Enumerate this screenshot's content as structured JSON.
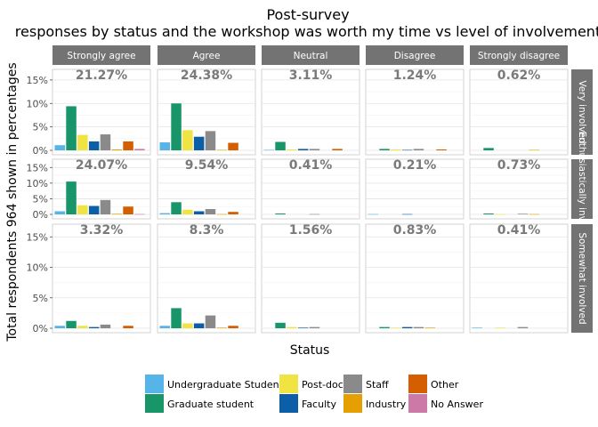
{
  "title_line1": "Post-survey",
  "title_line2": "responses by status and the workshop was worth my time vs level of involvement",
  "chart_data": {
    "type": "bar",
    "facet_cols": [
      "Strongly agree",
      "Agree",
      "Neutral",
      "Disagree",
      "Strongly disagree"
    ],
    "facet_rows": [
      "Very involved",
      "Enthusiastically involved",
      "Somewhat involved"
    ],
    "ylabel": "Total respondents 964 shown in percentages",
    "xlabel": "Status",
    "ylim": [
      0,
      16.5
    ],
    "y_ticks": [
      "0%",
      "5%",
      "10%",
      "15%"
    ],
    "y_tick_values": [
      0,
      5,
      10,
      15
    ],
    "grid": true,
    "legend_position": "bottom",
    "series": [
      {
        "name": "Undergraduate Student",
        "color": "#56B4E9"
      },
      {
        "name": "Graduate student",
        "color": "#199669"
      },
      {
        "name": "Post-doc",
        "color": "#F0E442"
      },
      {
        "name": "Faculty",
        "color": "#0C5FA6"
      },
      {
        "name": "Staff",
        "color": "#8A8A8A"
      },
      {
        "name": "Industry",
        "color": "#E69F00"
      },
      {
        "name": "Other",
        "color": "#D55E00"
      },
      {
        "name": "No Answer",
        "color": "#CC79A7"
      }
    ],
    "panels": [
      {
        "row": 0,
        "col": 0,
        "label": "21.27%",
        "values": [
          1.1,
          9.4,
          3.3,
          1.9,
          3.4,
          0.2,
          1.9,
          0.3
        ]
      },
      {
        "row": 0,
        "col": 1,
        "label": "24.38%",
        "values": [
          1.7,
          10.0,
          4.3,
          2.9,
          4.1,
          0.1,
          1.6,
          0.0
        ]
      },
      {
        "row": 0,
        "col": 2,
        "label": "3.11%",
        "values": [
          0.1,
          1.8,
          0.2,
          0.3,
          0.3,
          0.0,
          0.3,
          0.0
        ]
      },
      {
        "row": 0,
        "col": 3,
        "label": "1.24%",
        "values": [
          0.0,
          0.3,
          0.2,
          0.1,
          0.3,
          0.0,
          0.2,
          0.0
        ]
      },
      {
        "row": 0,
        "col": 4,
        "label": "0.62%",
        "values": [
          0.0,
          0.5,
          0.0,
          0.0,
          0.0,
          0.1,
          0.0,
          0.0
        ]
      },
      {
        "row": 1,
        "col": 0,
        "label": "24.07%",
        "values": [
          1.0,
          10.5,
          2.9,
          2.7,
          4.6,
          0.2,
          2.5,
          0.1
        ]
      },
      {
        "row": 1,
        "col": 1,
        "label": "9.54%",
        "values": [
          0.4,
          3.9,
          1.5,
          1.0,
          1.7,
          0.1,
          0.8,
          0.0
        ]
      },
      {
        "row": 1,
        "col": 2,
        "label": "0.41%",
        "values": [
          0.0,
          0.3,
          0.0,
          0.0,
          0.1,
          0.0,
          0.0,
          0.0
        ]
      },
      {
        "row": 1,
        "col": 3,
        "label": "0.21%",
        "values": [
          0.1,
          0.0,
          0.0,
          0.1,
          0.0,
          0.0,
          0.0,
          0.0
        ]
      },
      {
        "row": 1,
        "col": 4,
        "label": "0.73%",
        "values": [
          0.0,
          0.3,
          0.1,
          0.0,
          0.2,
          0.1,
          0.0,
          0.0
        ]
      },
      {
        "row": 2,
        "col": 0,
        "label": "3.32%",
        "values": [
          0.4,
          1.2,
          0.4,
          0.2,
          0.6,
          0.0,
          0.4,
          0.0
        ]
      },
      {
        "row": 2,
        "col": 1,
        "label": "8.3%",
        "values": [
          0.4,
          3.3,
          0.8,
          0.8,
          2.1,
          0.1,
          0.4,
          0.0
        ]
      },
      {
        "row": 2,
        "col": 2,
        "label": "1.56%",
        "values": [
          0.0,
          0.9,
          0.2,
          0.1,
          0.2,
          0.0,
          0.0,
          0.0
        ]
      },
      {
        "row": 2,
        "col": 3,
        "label": "0.83%",
        "values": [
          0.0,
          0.2,
          0.1,
          0.2,
          0.2,
          0.1,
          0.0,
          0.0
        ]
      },
      {
        "row": 2,
        "col": 4,
        "label": "0.41%",
        "values": [
          0.1,
          0.0,
          0.1,
          0.0,
          0.2,
          0.0,
          0.0,
          0.0
        ]
      }
    ]
  }
}
